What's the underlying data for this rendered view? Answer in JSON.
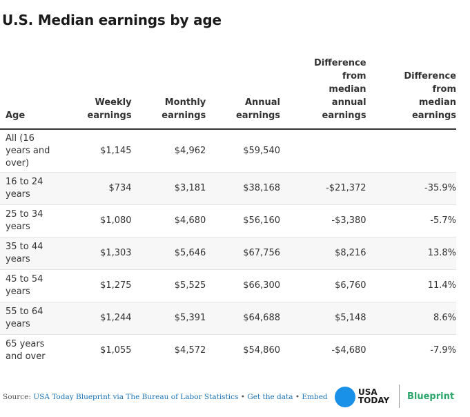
{
  "chart_data": {
    "type": "table",
    "title": "U.S. Median earnings by age",
    "columns": [
      [
        "Age"
      ],
      [
        "Weekly",
        "earnings"
      ],
      [
        "Monthly",
        "earnings"
      ],
      [
        "Annual",
        "earnings"
      ],
      [
        "Difference",
        "from",
        "median",
        "annual",
        "earnings"
      ],
      [
        "Difference",
        "from",
        "median",
        "earnings"
      ]
    ],
    "rows": [
      {
        "age": [
          "All (16",
          "years and",
          "over)"
        ],
        "weekly": "$1,145",
        "monthly": "$4,962",
        "annual": "$59,540",
        "diff_annual": "",
        "diff_pct": ""
      },
      {
        "age": [
          "16 to 24",
          "years"
        ],
        "weekly": "$734",
        "monthly": "$3,181",
        "annual": "$38,168",
        "diff_annual": "-$21,372",
        "diff_pct": "-35.9%"
      },
      {
        "age": [
          "25 to 34",
          "years"
        ],
        "weekly": "$1,080",
        "monthly": "$4,680",
        "annual": "$56,160",
        "diff_annual": "-$3,380",
        "diff_pct": "-5.7%"
      },
      {
        "age": [
          "35 to 44",
          "years"
        ],
        "weekly": "$1,303",
        "monthly": "$5,646",
        "annual": "$67,756",
        "diff_annual": "$8,216",
        "diff_pct": "13.8%"
      },
      {
        "age": [
          "45 to 54",
          "years"
        ],
        "weekly": "$1,275",
        "monthly": "$5,525",
        "annual": "$66,300",
        "diff_annual": "$6,760",
        "diff_pct": "11.4%"
      },
      {
        "age": [
          "55 to 64",
          "years"
        ],
        "weekly": "$1,244",
        "monthly": "$5,391",
        "annual": "$64,688",
        "diff_annual": "$5,148",
        "diff_pct": "8.6%"
      },
      {
        "age": [
          "65 years",
          "and over"
        ],
        "weekly": "$1,055",
        "monthly": "$4,572",
        "annual": "$54,860",
        "diff_annual": "-$4,680",
        "diff_pct": "-7.9%"
      }
    ]
  },
  "footer": {
    "source_label": "Source:",
    "source_text": "USA Today Blueprint via The Bureau of Labor Statistics",
    "separator": "•",
    "get_data": "Get the data",
    "embed": "Embed"
  },
  "logo": {
    "line1": "USA",
    "line2": "TODAY"
  },
  "brand": "Blueprint",
  "colors": {
    "accent_blue": "#1a91e8",
    "brand_green": "#2aa66a",
    "link": "#1a73b8"
  }
}
